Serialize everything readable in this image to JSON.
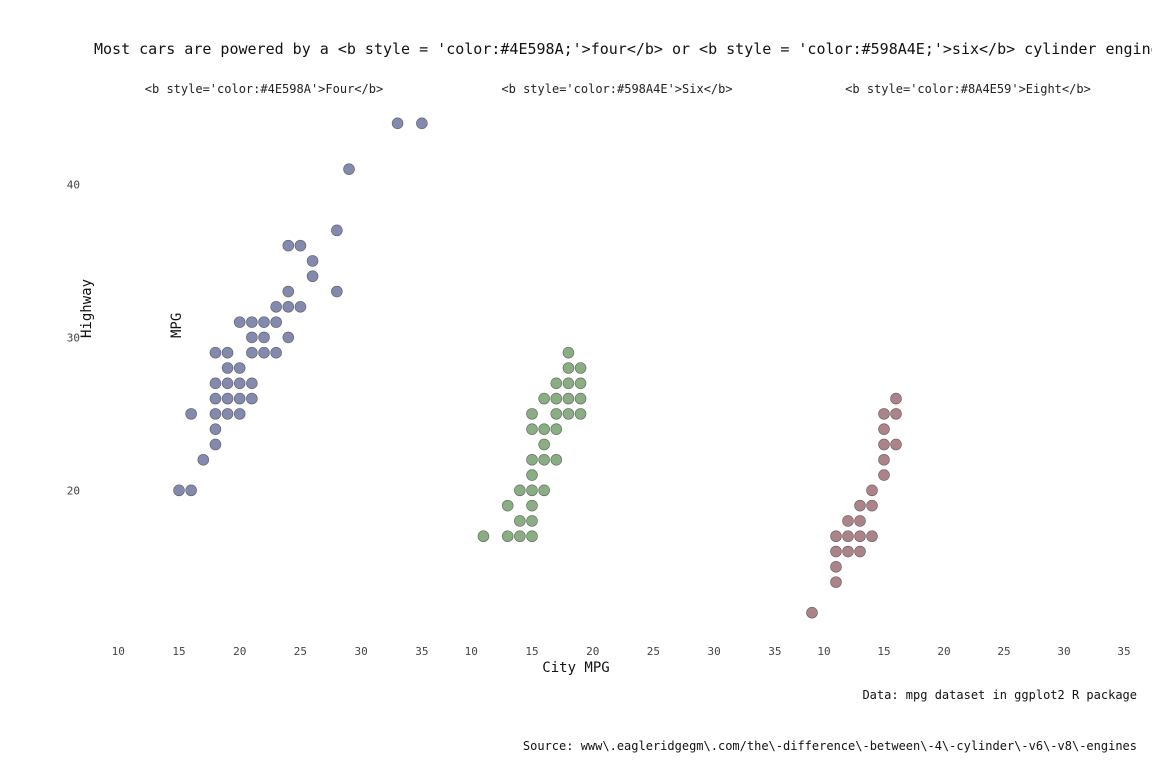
{
  "chart_data": {
    "type": "scatter",
    "title": "Most cars are powered by a <b style = 'color:#4E598A;'>four</b> or <b style = 'color:#598A4E;'>six</b> cylinder engine",
    "xlabel": "City MPG",
    "ylabel_lines": [
      "Highway",
      "MPG"
    ],
    "caption": "Data: mpg dataset in ggplot2 R package",
    "source": "Source: www\\.eagleridgegm\\.com/the\\-difference\\-between\\-4\\-cylinder\\-v6\\-v8\\-engines",
    "xlim": [
      8,
      36
    ],
    "ylim": [
      11,
      45
    ],
    "x_ticks": [
      10,
      15,
      20,
      25,
      30,
      35
    ],
    "y_ticks": [
      20,
      30,
      40
    ],
    "grid": false,
    "facets": [
      {
        "label": "<b style='color:#4E598A'>Four</b>",
        "color": "#4E598A",
        "points": [
          [
            15,
            20
          ],
          [
            16,
            20
          ],
          [
            16,
            25
          ],
          [
            17,
            22
          ],
          [
            18,
            23
          ],
          [
            18,
            24
          ],
          [
            18,
            25
          ],
          [
            18,
            26
          ],
          [
            18,
            27
          ],
          [
            18,
            29
          ],
          [
            19,
            25
          ],
          [
            19,
            26
          ],
          [
            19,
            27
          ],
          [
            19,
            28
          ],
          [
            19,
            29
          ],
          [
            20,
            25
          ],
          [
            20,
            26
          ],
          [
            20,
            27
          ],
          [
            20,
            28
          ],
          [
            20,
            31
          ],
          [
            21,
            26
          ],
          [
            21,
            27
          ],
          [
            21,
            29
          ],
          [
            21,
            30
          ],
          [
            21,
            31
          ],
          [
            22,
            29
          ],
          [
            22,
            30
          ],
          [
            22,
            31
          ],
          [
            23,
            29
          ],
          [
            23,
            31
          ],
          [
            23,
            32
          ],
          [
            24,
            30
          ],
          [
            24,
            32
          ],
          [
            24,
            33
          ],
          [
            24,
            36
          ],
          [
            25,
            32
          ],
          [
            25,
            36
          ],
          [
            26,
            34
          ],
          [
            26,
            35
          ],
          [
            28,
            33
          ],
          [
            28,
            37
          ],
          [
            29,
            41
          ],
          [
            33,
            44
          ],
          [
            35,
            44
          ]
        ]
      },
      {
        "label": "<b style='color:#598A4E'>Six</b>",
        "color": "#598A4E",
        "points": [
          [
            11,
            17
          ],
          [
            13,
            17
          ],
          [
            13,
            19
          ],
          [
            14,
            17
          ],
          [
            14,
            18
          ],
          [
            14,
            20
          ],
          [
            15,
            17
          ],
          [
            15,
            18
          ],
          [
            15,
            19
          ],
          [
            15,
            20
          ],
          [
            15,
            21
          ],
          [
            15,
            22
          ],
          [
            15,
            24
          ],
          [
            15,
            25
          ],
          [
            16,
            20
          ],
          [
            16,
            22
          ],
          [
            16,
            23
          ],
          [
            16,
            24
          ],
          [
            16,
            26
          ],
          [
            17,
            22
          ],
          [
            17,
            24
          ],
          [
            17,
            25
          ],
          [
            17,
            26
          ],
          [
            17,
            27
          ],
          [
            18,
            25
          ],
          [
            18,
            26
          ],
          [
            18,
            27
          ],
          [
            18,
            28
          ],
          [
            18,
            29
          ],
          [
            19,
            25
          ],
          [
            19,
            26
          ],
          [
            19,
            27
          ],
          [
            19,
            28
          ]
        ]
      },
      {
        "label": "<b style='color:#8A4E59'>Eight</b>",
        "color": "#8A4E59",
        "points": [
          [
            9,
            12
          ],
          [
            11,
            14
          ],
          [
            11,
            15
          ],
          [
            11,
            16
          ],
          [
            11,
            17
          ],
          [
            12,
            16
          ],
          [
            12,
            17
          ],
          [
            12,
            18
          ],
          [
            13,
            16
          ],
          [
            13,
            17
          ],
          [
            13,
            18
          ],
          [
            13,
            19
          ],
          [
            14,
            17
          ],
          [
            14,
            19
          ],
          [
            14,
            20
          ],
          [
            15,
            21
          ],
          [
            15,
            22
          ],
          [
            15,
            23
          ],
          [
            15,
            24
          ],
          [
            15,
            25
          ],
          [
            16,
            23
          ],
          [
            16,
            25
          ],
          [
            16,
            26
          ]
        ]
      }
    ]
  }
}
